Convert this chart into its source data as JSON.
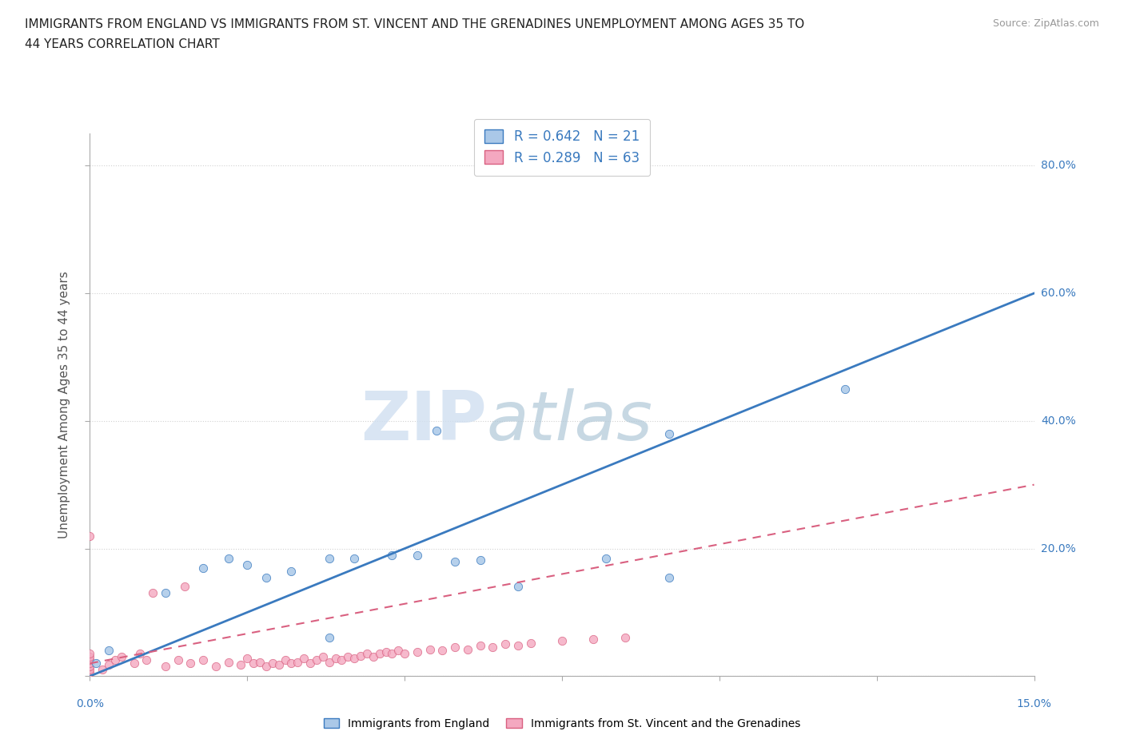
{
  "title": "IMMIGRANTS FROM ENGLAND VS IMMIGRANTS FROM ST. VINCENT AND THE GRENADINES UNEMPLOYMENT AMONG AGES 35 TO\n44 YEARS CORRELATION CHART",
  "source": "Source: ZipAtlas.com",
  "ylabel": "Unemployment Among Ages 35 to 44 years",
  "england_R": 0.642,
  "england_N": 21,
  "svg_R": 0.289,
  "svg_N": 63,
  "england_color": "#aac8e8",
  "svg_color": "#f4a8c0",
  "england_line_color": "#3a7abf",
  "svg_line_color": "#d96080",
  "watermark_left": "ZIP",
  "watermark_right": "atlas",
  "xlim": [
    0.0,
    0.15
  ],
  "ylim": [
    0.0,
    0.85
  ],
  "england_scatter_x": [
    0.001,
    0.003,
    0.012,
    0.018,
    0.022,
    0.025,
    0.028,
    0.032,
    0.038,
    0.042,
    0.048,
    0.052,
    0.058,
    0.062,
    0.068,
    0.082,
    0.092,
    0.055,
    0.038,
    0.12,
    0.092
  ],
  "england_scatter_y": [
    0.02,
    0.04,
    0.13,
    0.17,
    0.185,
    0.175,
    0.155,
    0.165,
    0.185,
    0.185,
    0.19,
    0.19,
    0.18,
    0.182,
    0.14,
    0.185,
    0.155,
    0.385,
    0.06,
    0.45,
    0.38
  ],
  "svg_scatter_x": [
    0.0,
    0.0,
    0.0,
    0.0,
    0.0,
    0.0,
    0.0,
    0.0,
    0.002,
    0.003,
    0.004,
    0.005,
    0.007,
    0.008,
    0.009,
    0.01,
    0.012,
    0.014,
    0.015,
    0.016,
    0.018,
    0.02,
    0.022,
    0.024,
    0.025,
    0.026,
    0.027,
    0.028,
    0.029,
    0.03,
    0.031,
    0.032,
    0.033,
    0.034,
    0.035,
    0.036,
    0.037,
    0.038,
    0.039,
    0.04,
    0.041,
    0.042,
    0.043,
    0.044,
    0.045,
    0.046,
    0.047,
    0.048,
    0.049,
    0.05,
    0.052,
    0.054,
    0.056,
    0.058,
    0.06,
    0.062,
    0.064,
    0.066,
    0.068,
    0.07,
    0.075,
    0.08,
    0.085
  ],
  "svg_scatter_y": [
    0.005,
    0.01,
    0.015,
    0.02,
    0.025,
    0.03,
    0.035,
    0.22,
    0.01,
    0.018,
    0.025,
    0.03,
    0.02,
    0.035,
    0.025,
    0.13,
    0.015,
    0.025,
    0.14,
    0.02,
    0.025,
    0.015,
    0.022,
    0.018,
    0.028,
    0.02,
    0.022,
    0.015,
    0.02,
    0.018,
    0.025,
    0.02,
    0.022,
    0.028,
    0.02,
    0.025,
    0.03,
    0.022,
    0.028,
    0.025,
    0.03,
    0.028,
    0.032,
    0.035,
    0.03,
    0.035,
    0.038,
    0.035,
    0.04,
    0.035,
    0.038,
    0.042,
    0.04,
    0.045,
    0.042,
    0.048,
    0.045,
    0.05,
    0.048,
    0.052,
    0.055,
    0.058,
    0.06
  ],
  "eng_line_x": [
    0.0,
    0.15
  ],
  "eng_line_y": [
    0.0,
    0.6
  ],
  "svg_line_x": [
    0.0,
    0.15
  ],
  "svg_line_y": [
    0.02,
    0.3
  ]
}
